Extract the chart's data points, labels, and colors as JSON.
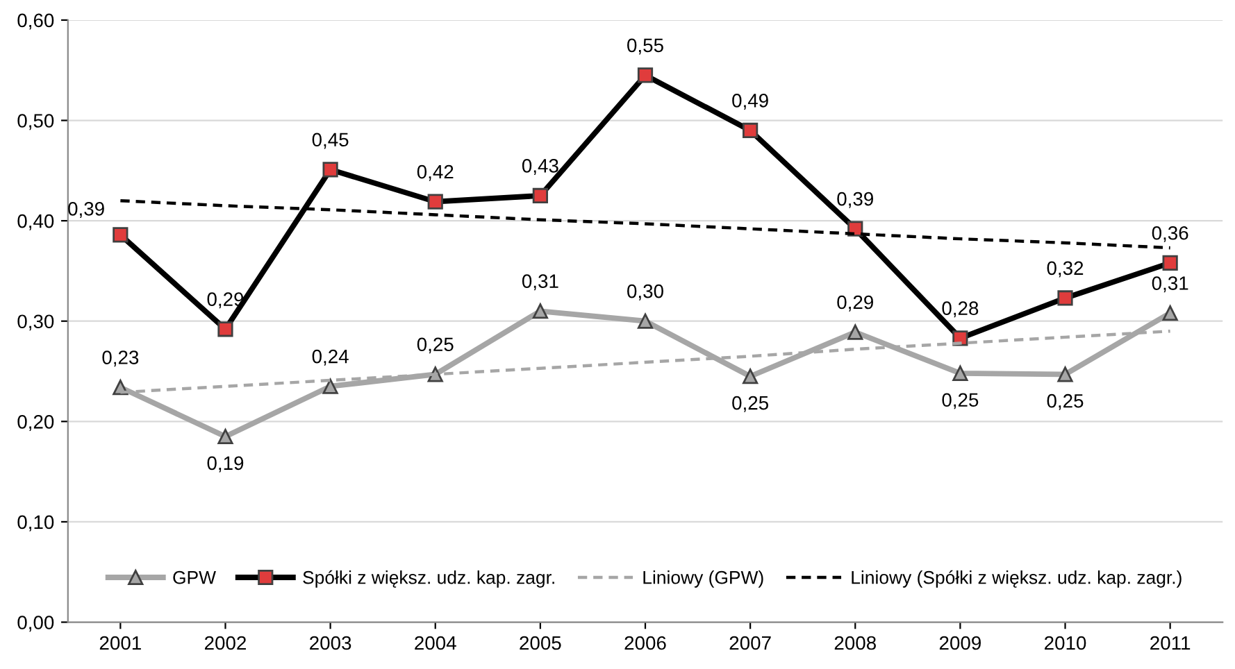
{
  "chart_data": {
    "type": "line",
    "categories": [
      "2001",
      "2002",
      "2003",
      "2004",
      "2005",
      "2006",
      "2007",
      "2008",
      "2009",
      "2010",
      "2011"
    ],
    "series": [
      {
        "name": "GPW",
        "color": "#a6a6a6",
        "marker": "triangle",
        "values": [
          0.234,
          0.185,
          0.235,
          0.247,
          0.31,
          0.3,
          0.245,
          0.289,
          0.248,
          0.247,
          0.308
        ],
        "value_labels": [
          "0,23",
          "0,19",
          "0,24",
          "0,25",
          "0,31",
          "0,30",
          "0,25",
          "0,29",
          "0,25",
          "0,25",
          "0,31"
        ]
      },
      {
        "name": "Spółki z większ. udz. kap. zagr.",
        "color": "#000000",
        "marker": "square",
        "values": [
          0.386,
          0.292,
          0.451,
          0.419,
          0.425,
          0.545,
          0.49,
          0.392,
          0.283,
          0.323,
          0.358
        ],
        "value_labels": [
          "0,39",
          "0,29",
          "0,45",
          "0,42",
          "0,43",
          "0,55",
          "0,49",
          "0,39",
          "0,28",
          "0,32",
          "0,36"
        ]
      },
      {
        "name": "Liniowy (GPW)",
        "color": "#a6a6a6",
        "line_style": "dashed",
        "marker": "none",
        "values": [
          0.229,
          0.235,
          0.241,
          0.247,
          0.253,
          0.259,
          0.265,
          0.272,
          0.278,
          0.284,
          0.29
        ]
      },
      {
        "name": "Liniowy (Spółki z większ. udz. kap. zagr.)",
        "color": "#000000",
        "line_style": "dashed",
        "marker": "none",
        "values": [
          0.42,
          0.415,
          0.411,
          0.406,
          0.401,
          0.397,
          0.392,
          0.387,
          0.382,
          0.378,
          0.373
        ]
      }
    ],
    "ylim": [
      0,
      0.6
    ],
    "yticks": [
      {
        "value": 0,
        "label": "0,00"
      },
      {
        "value": 0.1,
        "label": "0,10"
      },
      {
        "value": 0.2,
        "label": "0,20"
      },
      {
        "value": 0.3,
        "label": "0,30"
      },
      {
        "value": 0.4,
        "label": "0,40"
      },
      {
        "value": 0.5,
        "label": "0,50"
      },
      {
        "value": 0.6,
        "label": "0,60"
      }
    ],
    "grid": "y",
    "legend": "bottom"
  }
}
